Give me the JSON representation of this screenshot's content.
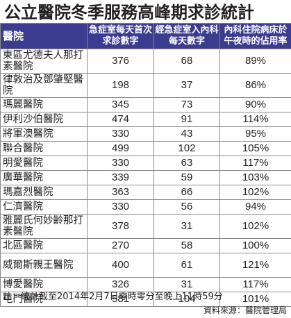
{
  "title": "公立醫院冬季服務高峰期求診統計",
  "headers": {
    "hospital": "醫院",
    "ae": "急症室每天首次求診數字",
    "admit": "經急症室入內科每天數字",
    "occupancy": "內科住院病床於午夜時的佔用率"
  },
  "rows": [
    {
      "name": "東區尤德夫人那打素醫院",
      "ae": "376",
      "admit": "68",
      "occ": "89%"
    },
    {
      "name": "律敦治及鄧肇堅醫院",
      "ae": "198",
      "admit": "37",
      "occ": "86%"
    },
    {
      "name": "瑪麗醫院",
      "ae": "345",
      "admit": "73",
      "occ": "90%"
    },
    {
      "name": "伊利沙伯醫院",
      "ae": "474",
      "admit": "91",
      "occ": "114%"
    },
    {
      "name": "將軍澳醫院",
      "ae": "330",
      "admit": "43",
      "occ": "95%"
    },
    {
      "name": "聯合醫院",
      "ae": "499",
      "admit": "102",
      "occ": "105%"
    },
    {
      "name": "明愛醫院",
      "ae": "330",
      "admit": "63",
      "occ": "117%"
    },
    {
      "name": "廣華醫院",
      "ae": "339",
      "admit": "59",
      "occ": "103%"
    },
    {
      "name": "瑪嘉烈醫院",
      "ae": "363",
      "admit": "66",
      "occ": "102%"
    },
    {
      "name": "仁濟醫院",
      "ae": "330",
      "admit": "56",
      "occ": "94%"
    },
    {
      "name": "雅麗氏何妙齡那打素醫院",
      "ae": "378",
      "admit": "31",
      "occ": "102%"
    },
    {
      "name": "北區醫院",
      "ae": "270",
      "admit": "58",
      "occ": "100%"
    },
    {
      "name": "威爾斯親王醫院",
      "ae": "400",
      "admit": "61",
      "occ": "121%"
    },
    {
      "name": "博愛醫院",
      "ae": "326",
      "admit": "31",
      "occ": "117%"
    },
    {
      "name": "屯門醫院",
      "ae": "581",
      "admit": "104",
      "occ": "101%"
    }
  ],
  "note": "註：統計截至2014年2月7日零時零分至晚上11時59分",
  "source": "資料來源：醫院管理局",
  "colors": {
    "header_bg": "#3b3b8f",
    "header_text": "#ffffff",
    "text": "#231f20",
    "border": "#8a8a8a"
  }
}
